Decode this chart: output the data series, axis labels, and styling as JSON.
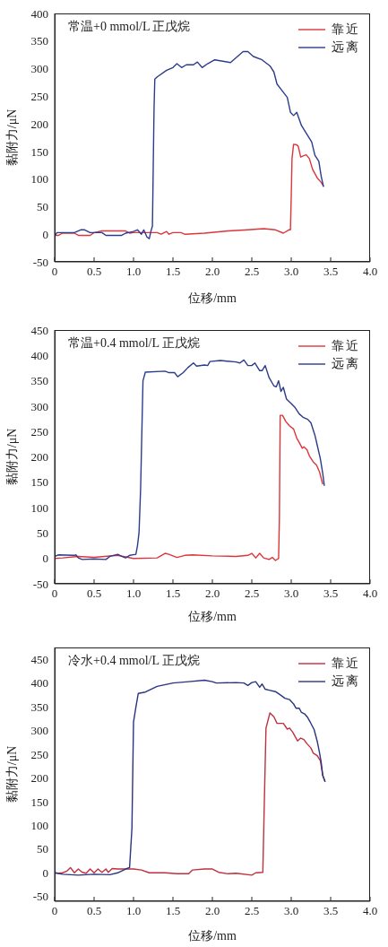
{
  "chart_data": [
    {
      "type": "line",
      "title": "常温+0 mmol/L 正戊烷",
      "xlabel": "位移/mm",
      "ylabel": "黏附力/μN",
      "legend": "top right",
      "line_style": "solid",
      "xlim": [
        0,
        4
      ],
      "xticks": [
        0,
        0.5,
        {
          "value": 1,
          "label": "1.0"
        },
        1.5,
        {
          "value": 2,
          "label": "2.0"
        },
        2.5,
        {
          "value": 3,
          "label": "3.0"
        },
        3.5,
        {
          "value": 4,
          "label": "4.0"
        }
      ],
      "ylim": [
        -50,
        400
      ],
      "yticks": [
        -50,
        0,
        50,
        100,
        150,
        200,
        250,
        300,
        350,
        400
      ],
      "series": [
        {
          "name": "靠近",
          "color": "#dc363c",
          "x": [
            0,
            0.05,
            0.1,
            0.25,
            0.3,
            0.45,
            0.5,
            0.6,
            0.9,
            0.95,
            1.0,
            1.3,
            1.35,
            1.42,
            1.45,
            1.5,
            1.6,
            1.65,
            1.9,
            2.2,
            2.45,
            2.65,
            2.8,
            2.9,
            2.97,
            2.99,
            3.0,
            3.01,
            3.03,
            3.07,
            3.09,
            3.12,
            3.15,
            3.19,
            3.23,
            3.27,
            3.33,
            3.38,
            3.41
          ],
          "values": [
            -2,
            -2,
            2,
            2,
            -2,
            -2,
            3,
            6,
            6,
            2,
            3,
            3,
            0,
            5,
            0,
            3,
            3,
            0,
            2,
            6,
            8,
            10,
            8,
            2,
            8,
            8,
            67,
            137,
            163,
            162,
            159,
            140,
            142,
            144,
            137,
            118,
            102,
            94,
            87
          ]
        },
        {
          "name": "远离",
          "color": "#2c3c8c",
          "x": [
            0,
            0.03,
            0.25,
            0.33,
            0.38,
            0.45,
            0.6,
            0.65,
            0.85,
            0.9,
            1.0,
            1.05,
            1.1,
            1.13,
            1.17,
            1.2,
            1.22,
            1.24,
            1.25,
            1.26,
            1.27,
            1.3,
            1.42,
            1.5,
            1.55,
            1.61,
            1.67,
            1.76,
            1.81,
            1.87,
            1.94,
            2.03,
            2.23,
            2.39,
            2.45,
            2.52,
            2.63,
            2.73,
            2.78,
            2.82,
            2.88,
            2.95,
            2.99,
            3.03,
            3.07,
            3.13,
            3.2,
            3.26,
            3.3,
            3.35,
            3.38,
            3.41
          ],
          "values": [
            -3,
            3,
            3,
            8,
            8,
            3,
            3,
            -2,
            -2,
            2,
            5,
            8,
            0,
            8,
            -5,
            -8,
            5,
            15,
            120,
            225,
            281,
            285,
            297,
            302,
            309,
            302,
            307,
            307,
            312,
            302,
            309,
            316,
            311,
            331,
            331,
            322,
            316,
            305,
            294,
            272,
            261,
            248,
            221,
            215,
            221,
            197,
            181,
            167,
            143,
            132,
            105,
            86
          ]
        }
      ]
    },
    {
      "type": "line",
      "title": "常温+0.4 mmol/L 正戊烷",
      "xlabel": "位移/mm",
      "ylabel": "黏附力/μN",
      "legend": "top right",
      "line_style": "solid",
      "xlim": [
        0,
        4
      ],
      "xticks": [
        0,
        0.5,
        {
          "value": 1,
          "label": "1.0"
        },
        1.5,
        {
          "value": 2,
          "label": "2.0"
        },
        2.5,
        {
          "value": 3,
          "label": "3.0"
        },
        3.5,
        {
          "value": 4,
          "label": "4.0"
        }
      ],
      "ylim": [
        -50,
        450
      ],
      "yticks": [
        -50,
        0,
        50,
        100,
        150,
        200,
        250,
        300,
        350,
        400,
        450
      ],
      "series": [
        {
          "name": "靠近",
          "color": "#dc363c",
          "x": [
            0,
            0.1,
            0.3,
            0.5,
            0.8,
            1.0,
            1.3,
            1.4,
            1.45,
            1.55,
            1.65,
            1.75,
            2.0,
            2.3,
            2.45,
            2.5,
            2.55,
            2.6,
            2.65,
            2.72,
            2.76,
            2.8,
            2.84,
            2.85,
            2.86,
            2.89,
            2.93,
            2.98,
            3.03,
            3.07,
            3.1,
            3.14,
            3.16,
            3.2,
            3.23,
            3.28,
            3.32,
            3.36,
            3.4
          ],
          "values": [
            0,
            1,
            4,
            2,
            6,
            0,
            1,
            10,
            8,
            2,
            6,
            7,
            5,
            4,
            6,
            10,
            1,
            10,
            1,
            -2,
            2,
            -4,
            0,
            78,
            282,
            282,
            270,
            261,
            255,
            237,
            229,
            217,
            220,
            214,
            202,
            190,
            184,
            170,
            146
          ]
        },
        {
          "name": "远离",
          "color": "#2c3c8c",
          "x": [
            0,
            0.05,
            0.25,
            0.27,
            0.3,
            0.35,
            0.5,
            0.65,
            0.7,
            0.8,
            0.85,
            0.9,
            0.95,
            1.03,
            1.05,
            1.07,
            1.09,
            1.11,
            1.12,
            1.15,
            1.4,
            1.45,
            1.52,
            1.56,
            1.63,
            1.69,
            1.76,
            1.8,
            1.9,
            1.94,
            1.97,
            2.1,
            2.3,
            2.35,
            2.4,
            2.45,
            2.5,
            2.54,
            2.6,
            2.63,
            2.67,
            2.72,
            2.78,
            2.81,
            2.84,
            2.87,
            2.9,
            2.94,
            3.0,
            3.05,
            3.1,
            3.15,
            3.21,
            3.25,
            3.3,
            3.33,
            3.37,
            3.4,
            3.42
          ],
          "values": [
            4,
            7,
            6,
            7,
            1,
            -2,
            -1,
            -2,
            4,
            8,
            4,
            1,
            6,
            8,
            25,
            51,
            137,
            279,
            350,
            367,
            369,
            366,
            366,
            358,
            366,
            376,
            385,
            379,
            381,
            380,
            388,
            390,
            387,
            385,
            391,
            380,
            380,
            385,
            370,
            370,
            380,
            356,
            340,
            338,
            350,
            329,
            337,
            314,
            305,
            297,
            285,
            278,
            274,
            267,
            243,
            223,
            196,
            167,
            143
          ]
        }
      ]
    },
    {
      "type": "line",
      "title": "冷水+0.4 mmol/L 正戊烷",
      "xlabel": "位移/mm",
      "ylabel": "黏附力/μN",
      "legend": "top right",
      "line_style": "solid",
      "xlim": [
        0,
        4
      ],
      "xticks": [
        0,
        0.5,
        {
          "value": 1,
          "label": "1.0"
        },
        1.5,
        {
          "value": 2,
          "label": "2.0"
        },
        2.5,
        {
          "value": 3,
          "label": "3.0"
        },
        3.5,
        {
          "value": 4,
          "label": "4.0"
        }
      ],
      "ylim": [
        -60,
        475
      ],
      "yticks": [
        -50,
        0,
        50,
        100,
        150,
        200,
        250,
        300,
        350,
        400,
        450
      ],
      "series": [
        {
          "name": "靠近",
          "color": "#c0303e",
          "x": [
            0,
            0.05,
            0.1,
            0.15,
            0.2,
            0.25,
            0.3,
            0.35,
            0.4,
            0.45,
            0.5,
            0.55,
            0.6,
            0.65,
            0.68,
            0.73,
            0.8,
            1.0,
            1.1,
            1.2,
            1.4,
            1.55,
            1.7,
            1.75,
            1.9,
            2.0,
            2.08,
            2.2,
            2.3,
            2.5,
            2.55,
            2.64,
            2.66,
            2.68,
            2.73,
            2.78,
            2.82,
            2.9,
            2.95,
            2.98,
            3.02,
            3.08,
            3.12,
            3.16,
            3.2,
            3.25,
            3.28,
            3.33,
            3.37,
            3.4,
            3.43
          ],
          "values": [
            0,
            -1,
            0,
            3,
            11,
            0,
            8,
            1,
            -1,
            8,
            0,
            8,
            1,
            8,
            1,
            9,
            8,
            8,
            6,
            0,
            0,
            -2,
            -2,
            6,
            8,
            8,
            1,
            -2,
            -1,
            -5,
            0,
            1,
            157,
            305,
            337,
            329,
            315,
            315,
            303,
            305,
            296,
            278,
            284,
            281,
            272,
            263,
            252,
            247,
            236,
            205,
            192
          ]
        },
        {
          "name": "远离",
          "color": "#2a3580",
          "x": [
            0,
            0.1,
            0.3,
            0.5,
            0.7,
            0.8,
            0.9,
            0.95,
            0.98,
            1.0,
            1.03,
            1.06,
            1.15,
            1.3,
            1.5,
            1.7,
            1.9,
            2.0,
            2.05,
            2.3,
            2.4,
            2.45,
            2.5,
            2.55,
            2.6,
            2.63,
            2.67,
            2.72,
            2.8,
            2.87,
            2.92,
            2.98,
            3.03,
            3.06,
            3.1,
            3.13,
            3.17,
            3.21,
            3.24,
            3.29,
            3.33,
            3.36,
            3.38,
            3.4,
            3.43
          ],
          "values": [
            0,
            -3,
            -5,
            -3,
            -4,
            0,
            8,
            11,
            94,
            318,
            349,
            378,
            381,
            393,
            400,
            403,
            406,
            403,
            400,
            401,
            400,
            395,
            401,
            403,
            391,
            398,
            387,
            385,
            382,
            374,
            368,
            365,
            356,
            347,
            347,
            338,
            335,
            327,
            318,
            302,
            277,
            252,
            233,
            205,
            192
          ]
        }
      ]
    }
  ]
}
